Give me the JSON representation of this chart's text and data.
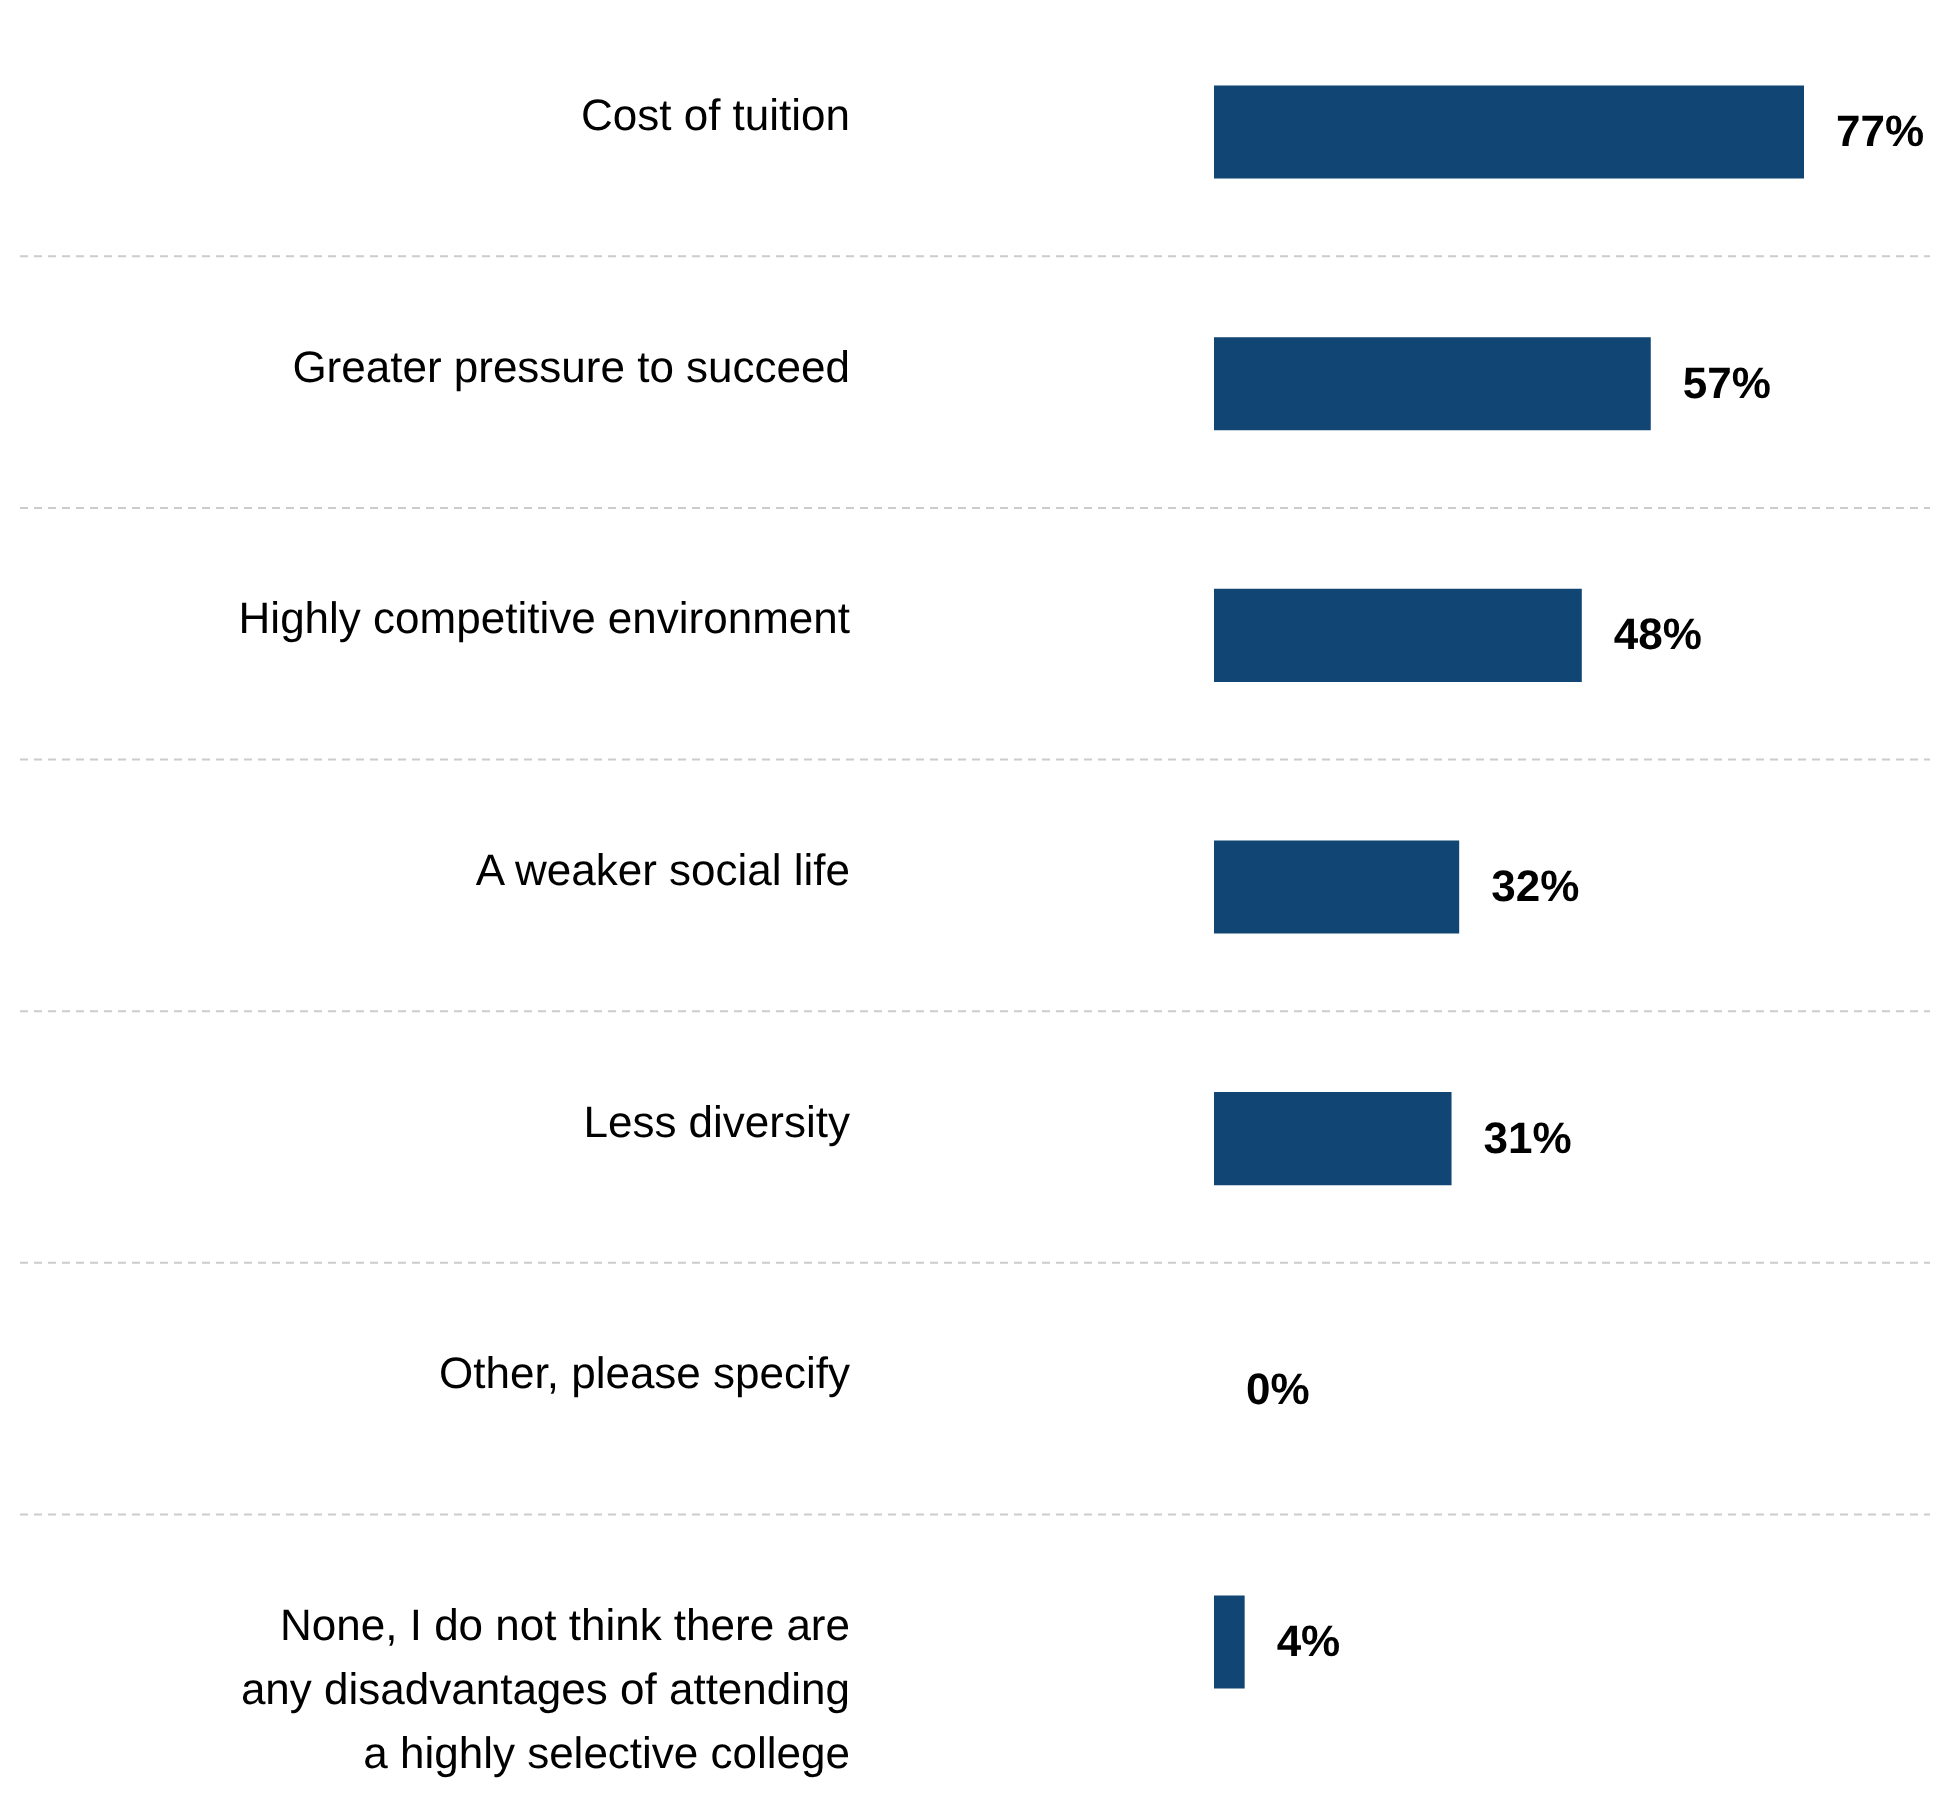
{
  "chart_data": {
    "type": "bar",
    "orientation": "horizontal",
    "color": "#104574",
    "grid": "y",
    "categories": [
      "Cost of tuition",
      "Greater pressure to succeed",
      "Highly competitive environment",
      "A weaker social life",
      "Less diversity",
      "Other, please specify",
      "None, I do not think there are any disadvantages of attending a highly selective college"
    ],
    "values": [
      77,
      57,
      48,
      32,
      31,
      0,
      4
    ],
    "value_labels": [
      "77%",
      "57%",
      "48%",
      "32%",
      "31%",
      "0%",
      "4%"
    ]
  }
}
